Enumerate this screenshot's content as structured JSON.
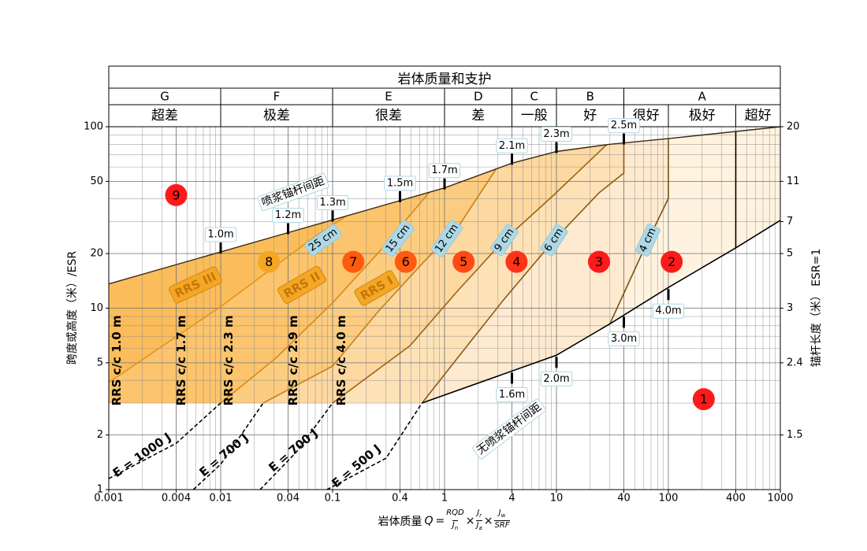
{
  "chart_data": {
    "type": "region",
    "header": {
      "title": "岩体质量和支护",
      "classes": [
        {
          "letter": "G",
          "from": 0.001,
          "to": 0.01
        },
        {
          "letter": "F",
          "from": 0.01,
          "to": 0.1
        },
        {
          "letter": "E",
          "from": 0.1,
          "to": 1
        },
        {
          "letter": "D",
          "from": 1,
          "to": 4
        },
        {
          "letter": "C",
          "from": 4,
          "to": 10
        },
        {
          "letter": "B",
          "from": 10,
          "to": 40
        },
        {
          "letter": "A",
          "from": 40,
          "to": 1000
        }
      ],
      "names": [
        {
          "name": "超差",
          "from": 0.001,
          "to": 0.01
        },
        {
          "name": "极差",
          "from": 0.01,
          "to": 0.1
        },
        {
          "name": "很差",
          "from": 0.1,
          "to": 1
        },
        {
          "name": "差",
          "from": 1,
          "to": 4
        },
        {
          "name": "一般",
          "from": 4,
          "to": 10
        },
        {
          "name": "好",
          "from": 10,
          "to": 40
        },
        {
          "name": "很好",
          "from": 40,
          "to": 100
        },
        {
          "name": "极好",
          "from": 100,
          "to": 400
        },
        {
          "name": "超好",
          "from": 400,
          "to": 1000
        }
      ]
    },
    "xlabel": {
      "text": "岩体质量",
      "symbol": "Q",
      "equals": "=",
      "times": "×",
      "fractions": [
        {
          "num": {
            "base": "RQD",
            "sub": ""
          },
          "den": {
            "base": "J",
            "sub": "n"
          }
        },
        {
          "num": {
            "base": "J",
            "sub": "r"
          },
          "den": {
            "base": "J",
            "sub": "a"
          }
        },
        {
          "num": {
            "base": "J",
            "sub": "w"
          },
          "den": {
            "base": "SRF",
            "sub": ""
          }
        }
      ]
    },
    "ylabel": "跨度或高度（米）/ESR",
    "y2label": "锚杆长度（米） ESR=1",
    "xscale": "log",
    "yscale": "log",
    "xlim": [
      0.001,
      1000
    ],
    "ylim": [
      1,
      100
    ],
    "xticks": [
      0.001,
      0.004,
      0.01,
      0.04,
      0.1,
      0.4,
      1,
      4,
      10,
      40,
      100,
      400,
      1000
    ],
    "yticks": [
      1,
      2,
      5,
      10,
      20,
      50,
      100
    ],
    "y2ticks": [
      {
        "value": 100,
        "label": "20"
      },
      {
        "value": 50,
        "label": "11"
      },
      {
        "value": 30,
        "label": "7"
      },
      {
        "value": 20,
        "label": "5"
      },
      {
        "value": 10,
        "label": "3"
      },
      {
        "value": 5,
        "label": "2.4"
      },
      {
        "value": 2,
        "label": "1.5"
      }
    ],
    "grid": true,
    "floor": 3,
    "base_fill": "#fff3e0",
    "upper": {
      "x": [
        0.001,
        1,
        4,
        10,
        30,
        100,
        1000
      ],
      "y": [
        13.6,
        46,
        63,
        73,
        80,
        86,
        100
      ],
      "color": "#3a2a12"
    },
    "lower": {
      "x": [
        0.63,
        10,
        30,
        100,
        400,
        1000
      ],
      "y": [
        3,
        5.5,
        8.2,
        13,
        21.5,
        30.5
      ],
      "color": "#000000"
    },
    "vertical": {
      "x": [
        400,
        400
      ],
      "y": [
        21.5,
        94.2
      ],
      "color": "#000000"
    },
    "curves": [
      {
        "x": [
          0.001,
          0.01,
          0.07,
          0.134
        ],
        "y": [
          3.9,
          10.2,
          24.9,
          32.3
        ],
        "color": "#e3931b",
        "fill": "#fbbd5b"
      },
      {
        "x": [
          0.01,
          0.031,
          0.1,
          0.26,
          0.73
        ],
        "y": [
          3,
          5.3,
          10.7,
          20.4,
          43.5
        ],
        "color": "#d98a17",
        "fill": "#fcc46c"
      },
      {
        "x": [
          0.024,
          0.1,
          0.26,
          0.68,
          1.3,
          2.9
        ],
        "y": [
          3,
          4.8,
          9.7,
          18.5,
          27.6,
          58.7
        ],
        "color": "#c77e17",
        "fill": "#fccd80"
      },
      {
        "x": [
          0.1,
          0.49,
          1.3,
          3.4,
          9.1,
          28
        ],
        "y": [
          3,
          6.2,
          12.4,
          23.7,
          41.1,
          79.5
        ],
        "color": "#9c6414",
        "fill": "#fdd8a0"
      },
      {
        "x": [
          0.63,
          1.3,
          3.4,
          9.5,
          24,
          40,
          40
        ],
        "y": [
          3,
          5.3,
          11.2,
          23.7,
          43.2,
          55.5,
          81.4
        ],
        "color": "#8a5a12",
        "fill": "#fde2b8"
      },
      {
        "x": [
          30,
          66,
          100,
          100
        ],
        "y": [
          8.2,
          23.7,
          40.3,
          86
        ],
        "color": "#7a4f10",
        "fill": "#feead0"
      }
    ],
    "energy": [
      {
        "x": [
          0.001,
          0.004,
          0.01
        ],
        "y": [
          1.15,
          1.8,
          3
        ],
        "label": "E = 1000 J"
      },
      {
        "x": [
          0.0057,
          0.01,
          0.024
        ],
        "y": [
          1,
          1.38,
          3
        ],
        "label": "E = 700 J"
      },
      {
        "x": [
          0.0225,
          0.047,
          0.1
        ],
        "y": [
          1,
          1.6,
          3
        ],
        "label": "E = 700 J"
      },
      {
        "x": [
          0.089,
          0.3,
          0.63
        ],
        "y": [
          1,
          1.49,
          3
        ],
        "label": "E = 500 J"
      }
    ],
    "bolts_upper": [
      {
        "x": 0.01,
        "label": "1.0m"
      },
      {
        "x": 0.04,
        "label": "1.2m"
      },
      {
        "x": 0.1,
        "label": "1.3m"
      },
      {
        "x": 0.4,
        "label": "1.5m"
      },
      {
        "x": 1,
        "label": "1.7m"
      },
      {
        "x": 4,
        "label": "2.1m"
      },
      {
        "x": 10,
        "label": "2.3m"
      },
      {
        "x": 40,
        "label": "2.5m"
      }
    ],
    "bolts_lower": [
      {
        "x": 4,
        "label": "1.6m"
      },
      {
        "x": 10,
        "label": "2.0m"
      },
      {
        "x": 40,
        "label": "3.0m"
      },
      {
        "x": 100,
        "label": "4.0m"
      }
    ],
    "spacing_labels": [
      "25 cm",
      "15 cm",
      "12 cm",
      "9 cm",
      "6 cm",
      "4 cm"
    ],
    "rrs_labels": [
      "RRS III",
      "RRS II",
      "RRS I"
    ],
    "rrs_spacing_labels": [
      "RRS c/c 1.0 m",
      "RRS c/c 1.7 m",
      "RRS c/c 2.3 m",
      "RRS c/c 2.9 m",
      "RRS c/c 4.0 m"
    ],
    "curve_labels": {
      "with_shotcrete": "喷浆锚杆间距",
      "without_shotcrete": "无喷浆锚杆间距"
    },
    "zones": [
      {
        "id": 9,
        "x": 0.004,
        "y": 42,
        "color": "#ff1a1a"
      },
      {
        "id": 8,
        "x": 0.027,
        "y": 18,
        "color": "#f5a623"
      },
      {
        "id": 7,
        "x": 0.153,
        "y": 18,
        "color": "#ff5a10"
      },
      {
        "id": 6,
        "x": 0.45,
        "y": 18,
        "color": "#ff5a10"
      },
      {
        "id": 5,
        "x": 1.48,
        "y": 18,
        "color": "#ff4a18"
      },
      {
        "id": 4,
        "x": 4.4,
        "y": 18,
        "color": "#ff3318"
      },
      {
        "id": 3,
        "x": 24,
        "y": 18,
        "color": "#ff1a1a"
      },
      {
        "id": 2,
        "x": 107,
        "y": 18,
        "color": "#ff1a1a"
      },
      {
        "id": 1,
        "x": 207,
        "y": 3.15,
        "color": "#ff1a1a"
      }
    ]
  }
}
